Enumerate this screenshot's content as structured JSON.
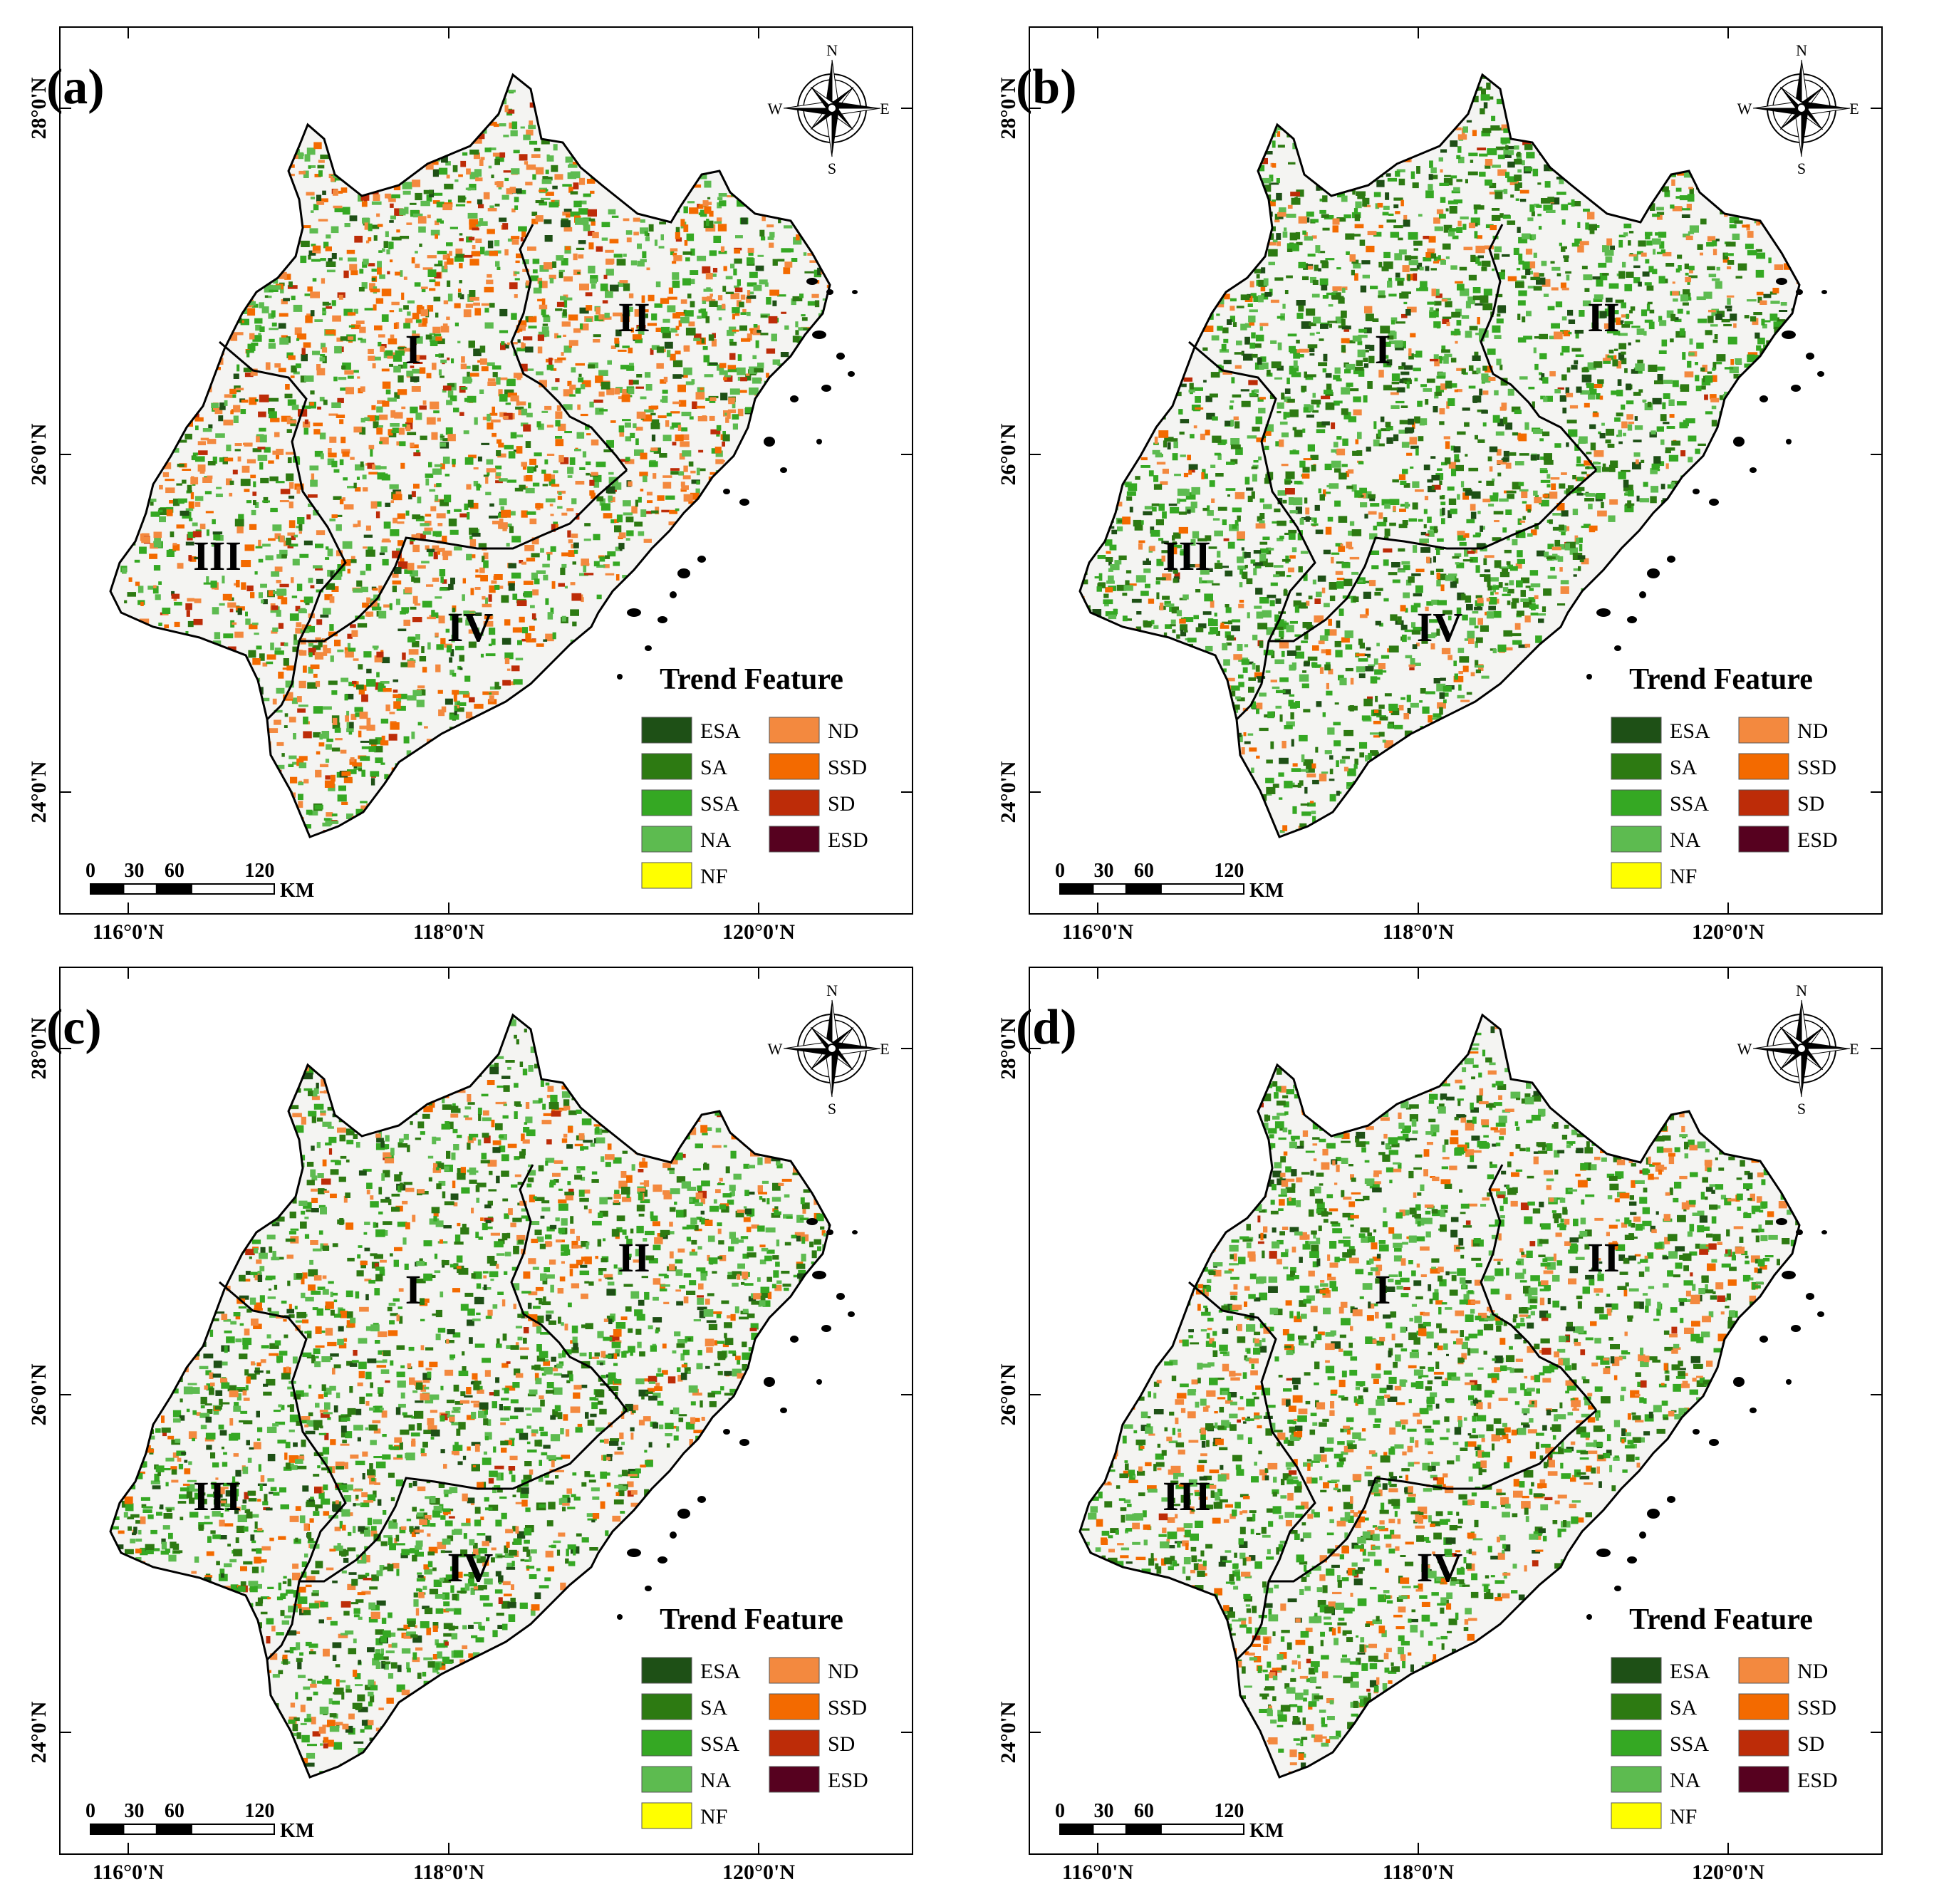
{
  "panels": [
    {
      "id": "a",
      "label": "(a)"
    },
    {
      "id": "b",
      "label": "(b)"
    },
    {
      "id": "c",
      "label": "(c)"
    },
    {
      "id": "d",
      "label": "(d)"
    }
  ],
  "regions": [
    "I",
    "II",
    "III",
    "IV"
  ],
  "legend": {
    "title": "Trend Feature",
    "items": [
      {
        "code": "ESA",
        "color": "#1e5016"
      },
      {
        "code": "SA",
        "color": "#2d7a12"
      },
      {
        "code": "SSA",
        "color": "#35a823"
      },
      {
        "code": "NA",
        "color": "#5dbb50"
      },
      {
        "code": "NF",
        "color": "#ffff00"
      },
      {
        "code": "ND",
        "color": "#f3893f"
      },
      {
        "code": "SSD",
        "color": "#f36a00"
      },
      {
        "code": "SD",
        "color": "#bd2c08"
      },
      {
        "code": "ESD",
        "color": "#56011f"
      }
    ]
  },
  "axes": {
    "latitude_ticks": [
      "28°0'N",
      "26°0'N",
      "24°0'N"
    ],
    "longitude_ticks": [
      "116°0'N",
      "118°0'N",
      "120°0'N"
    ]
  },
  "scale_bar": {
    "labels": [
      "0",
      "30",
      "60",
      "120"
    ],
    "unit": "KM"
  },
  "compass": {
    "n": "N",
    "s": "S",
    "e": "E",
    "w": "W"
  }
}
